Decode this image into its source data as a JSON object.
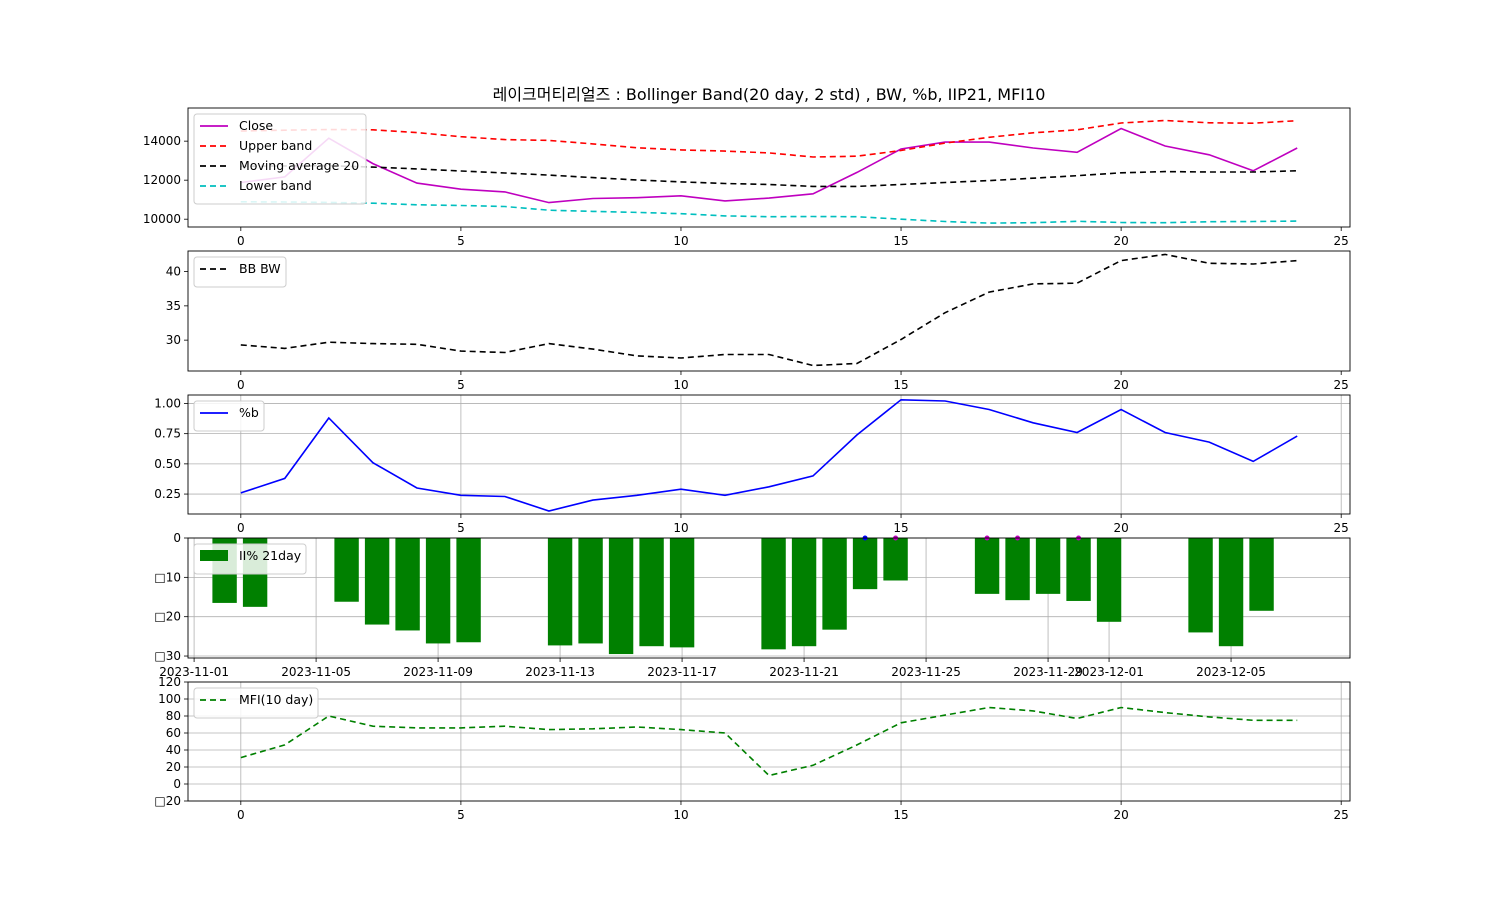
{
  "title": "레이크머티리얼즈 : Bollinger Band(20 day, 2 std) , BW, %b, IIP21, MFI10",
  "chart_data": [
    {
      "type": "line",
      "id": "bollinger",
      "x": [
        0,
        1,
        2,
        3,
        4,
        5,
        6,
        7,
        8,
        9,
        10,
        11,
        12,
        13,
        14,
        15,
        16,
        17,
        18,
        19,
        20,
        21,
        22,
        23,
        24
      ],
      "xlim": [
        -1.2,
        25.2
      ],
      "ylim": [
        9600,
        15700
      ],
      "xticks": [
        0,
        5,
        10,
        15,
        20,
        25
      ],
      "yticks": [
        10000,
        12000,
        14000
      ],
      "grid": false,
      "legend_position": "upper-left",
      "series": [
        {
          "name": "Close",
          "color": "#bf00bf",
          "dash": "",
          "values": [
            11880,
            12170,
            14150,
            12850,
            11850,
            11540,
            11400,
            10850,
            11060,
            11100,
            11200,
            10940,
            11080,
            11300,
            12400,
            13600,
            13950,
            13950,
            13650,
            13430,
            14650,
            13750,
            13300,
            12480,
            13650
          ]
        },
        {
          "name": "Upper band",
          "color": "#ff0000",
          "dash": "6,4",
          "values": [
            14520,
            14560,
            14600,
            14580,
            14440,
            14230,
            14080,
            14040,
            13860,
            13660,
            13550,
            13490,
            13400,
            13190,
            13230,
            13520,
            13900,
            14200,
            14430,
            14580,
            14930,
            15060,
            14940,
            14920,
            15050
          ]
        },
        {
          "name": "Moving average 20",
          "color": "#000000",
          "dash": "6,4",
          "values": [
            12710,
            12730,
            12740,
            12670,
            12580,
            12470,
            12370,
            12260,
            12130,
            12010,
            11910,
            11830,
            11780,
            11680,
            11680,
            11780,
            11880,
            11980,
            12100,
            12230,
            12380,
            12440,
            12420,
            12420,
            12480
          ]
        },
        {
          "name": "Lower band",
          "color": "#00bfbf",
          "dash": "6,4",
          "values": [
            10890,
            10880,
            10860,
            10820,
            10740,
            10700,
            10650,
            10460,
            10400,
            10350,
            10280,
            10170,
            10130,
            10140,
            10130,
            10000,
            9880,
            9800,
            9820,
            9890,
            9830,
            9820,
            9870,
            9880,
            9900
          ]
        }
      ]
    },
    {
      "type": "line",
      "id": "bbw",
      "x": [
        0,
        1,
        2,
        3,
        4,
        5,
        6,
        7,
        8,
        9,
        10,
        11,
        12,
        13,
        14,
        15,
        16,
        17,
        18,
        19,
        20,
        21,
        22,
        23,
        24
      ],
      "xlim": [
        -1.2,
        25.2
      ],
      "ylim": [
        25.5,
        43.0
      ],
      "xticks": [
        0,
        5,
        10,
        15,
        20,
        25
      ],
      "yticks": [
        30,
        35,
        40
      ],
      "grid": false,
      "legend_position": "upper-left",
      "series": [
        {
          "name": "BB BW",
          "color": "#000000",
          "dash": "6,4",
          "values": [
            29.3,
            28.8,
            29.7,
            29.5,
            29.4,
            28.4,
            28.2,
            29.5,
            28.7,
            27.7,
            27.4,
            27.9,
            27.9,
            26.3,
            26.6,
            30.1,
            34.0,
            37.0,
            38.2,
            38.3,
            41.6,
            42.5,
            41.2,
            41.1,
            41.6
          ]
        }
      ]
    },
    {
      "type": "line",
      "id": "percent_b",
      "x": [
        0,
        1,
        2,
        3,
        4,
        5,
        6,
        7,
        8,
        9,
        10,
        11,
        12,
        13,
        14,
        15,
        16,
        17,
        18,
        19,
        20,
        21,
        22,
        23,
        24
      ],
      "xlim": [
        -1.2,
        25.2
      ],
      "ylim": [
        0.085,
        1.07
      ],
      "xticks": [
        0,
        5,
        10,
        15,
        20,
        25
      ],
      "yticks": [
        0.25,
        0.5,
        0.75,
        1.0
      ],
      "ytick_labels": [
        "0.25",
        "0.50",
        "0.75",
        "1.00"
      ],
      "grid": true,
      "legend_position": "upper-left",
      "series": [
        {
          "name": "%b",
          "color": "#0000ff",
          "dash": "",
          "values": [
            0.26,
            0.38,
            0.88,
            0.51,
            0.3,
            0.24,
            0.23,
            0.11,
            0.2,
            0.24,
            0.29,
            0.24,
            0.31,
            0.4,
            0.74,
            1.03,
            1.02,
            0.95,
            0.84,
            0.76,
            0.95,
            0.76,
            0.68,
            0.52,
            0.73
          ]
        }
      ]
    },
    {
      "type": "bar",
      "id": "iip21",
      "categories": [
        "2023-11-02",
        "2023-11-03",
        "2023-11-06",
        "2023-11-07",
        "2023-11-08",
        "2023-11-09",
        "2023-11-10",
        "2023-11-13",
        "2023-11-14",
        "2023-11-15",
        "2023-11-16",
        "2023-11-17",
        "2023-11-20",
        "2023-11-21",
        "2023-11-22",
        "2023-11-23",
        "2023-11-24",
        "2023-11-27",
        "2023-11-28",
        "2023-11-29",
        "2023-11-30",
        "2023-12-01",
        "2023-12-04",
        "2023-12-05",
        "2023-12-06"
      ],
      "x_days": [
        1,
        2,
        5,
        6,
        7,
        8,
        9,
        12,
        13,
        14,
        15,
        16,
        19,
        20,
        21,
        22,
        23,
        26,
        27,
        28,
        29,
        30,
        33,
        34,
        35
      ],
      "values": [
        -16.5,
        -17.5,
        -16.2,
        -22.0,
        -23.5,
        -26.8,
        -26.5,
        -27.3,
        -26.8,
        -29.5,
        -27.5,
        -27.8,
        -28.3,
        -27.5,
        -23.3,
        -13.0,
        -10.8,
        -14.2,
        -15.8,
        -14.2,
        -16.0,
        -21.3,
        -24.0,
        -27.5,
        -18.5
      ],
      "markers": [
        {
          "x_day": 22,
          "color": "#0000ff"
        },
        {
          "x_day": 23,
          "color": "#bf00bf"
        },
        {
          "x_day": 26,
          "color": "#bf00bf"
        },
        {
          "x_day": 27,
          "color": "#bf00bf"
        },
        {
          "x_day": 29,
          "color": "#bf00bf"
        }
      ],
      "xlim_days": [
        -0.2,
        37.9
      ],
      "ylim": [
        -30.5,
        0
      ],
      "xticks_days": [
        0,
        4,
        8,
        12,
        16,
        20,
        24,
        28,
        30,
        34
      ],
      "xtick_labels": [
        "2023-11-01",
        "2023-11-05",
        "2023-11-09",
        "2023-11-13",
        "2023-11-17",
        "2023-11-21",
        "2023-11-25",
        "2023-11-29",
        "2023-12-01",
        "2023-12-05"
      ],
      "yticks": [
        0,
        -10,
        -20,
        -30
      ],
      "ytick_labels": [
        "0",
        "□10",
        "□20",
        "□30"
      ],
      "grid": true,
      "legend_position": "upper-left",
      "series_name": "II% 21day",
      "color": "#008000"
    },
    {
      "type": "line",
      "id": "mfi",
      "x": [
        0,
        1,
        2,
        3,
        4,
        5,
        6,
        7,
        8,
        9,
        10,
        11,
        12,
        13,
        14,
        15,
        16,
        17,
        18,
        19,
        20,
        21,
        22,
        23,
        24
      ],
      "xlim": [
        -1.2,
        25.2
      ],
      "ylim": [
        -20,
        120
      ],
      "xticks": [
        0,
        5,
        10,
        15,
        20,
        25
      ],
      "yticks": [
        -20,
        0,
        20,
        40,
        60,
        80,
        100,
        120
      ],
      "ytick_labels": [
        "□20",
        "0",
        "20",
        "40",
        "60",
        "80",
        "100",
        "120"
      ],
      "grid": true,
      "legend_position": "upper-left",
      "series": [
        {
          "name": "MFI(10 day)",
          "color": "#008000",
          "dash": "6,4",
          "values": [
            31,
            46,
            80,
            68,
            66,
            66,
            68,
            64,
            65,
            67,
            64,
            60,
            10,
            22,
            46,
            72,
            81,
            90,
            86,
            77,
            90,
            84,
            79,
            75,
            75
          ]
        }
      ]
    }
  ]
}
